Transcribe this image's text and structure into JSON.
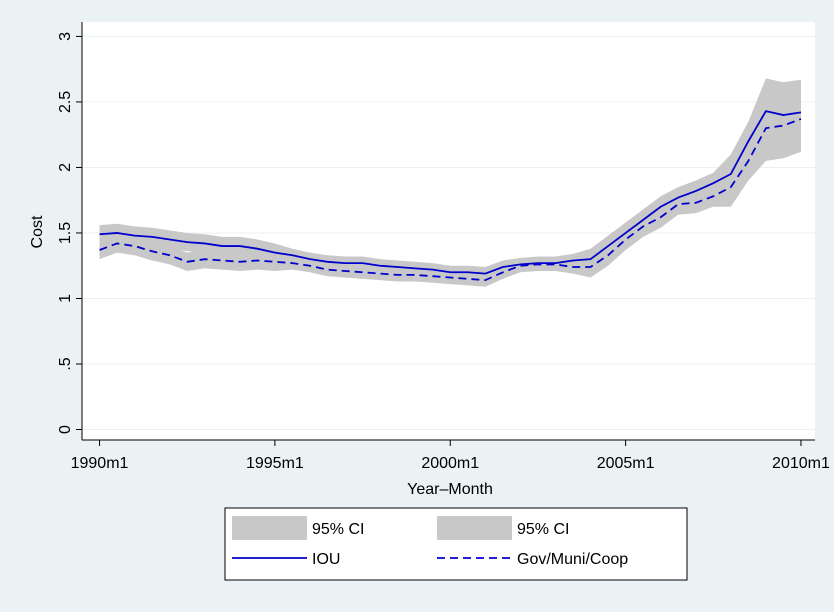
{
  "chart_data": {
    "type": "line",
    "x_label": "Year–Month",
    "y_label": "Cost",
    "x": [
      1990,
      1990.5,
      1991,
      1991.5,
      1992,
      1992.5,
      1993,
      1993.5,
      1994,
      1994.5,
      1995,
      1995.5,
      1996,
      1996.5,
      1997,
      1997.5,
      1998,
      1998.5,
      1999,
      1999.5,
      2000,
      2000.5,
      2001,
      2001.5,
      2002,
      2002.5,
      2003,
      2003.5,
      2004,
      2004.5,
      2005,
      2005.5,
      2006,
      2006.5,
      2007,
      2007.5,
      2008,
      2008.5,
      2009,
      2009.5,
      2010
    ],
    "series": [
      {
        "name": "95% CI",
        "type": "band",
        "color": "#c8c8c8",
        "lower": [
          1.42,
          1.43,
          1.41,
          1.4,
          1.38,
          1.36,
          1.35,
          1.33,
          1.33,
          1.31,
          1.28,
          1.28,
          1.25,
          1.23,
          1.22,
          1.22,
          1.2,
          1.19,
          1.18,
          1.17,
          1.15,
          1.15,
          1.14,
          1.19,
          1.21,
          1.22,
          1.22,
          1.24,
          1.22,
          1.32,
          1.42,
          1.52,
          1.62,
          1.69,
          1.74,
          1.8,
          1.8,
          2.05,
          2.18,
          2.15,
          2.17
        ],
        "upper": [
          1.56,
          1.57,
          1.55,
          1.54,
          1.52,
          1.5,
          1.49,
          1.47,
          1.47,
          1.45,
          1.42,
          1.38,
          1.35,
          1.33,
          1.32,
          1.32,
          1.3,
          1.29,
          1.28,
          1.27,
          1.25,
          1.25,
          1.24,
          1.29,
          1.31,
          1.32,
          1.32,
          1.34,
          1.38,
          1.48,
          1.58,
          1.68,
          1.78,
          1.85,
          1.9,
          1.96,
          2.1,
          2.35,
          2.68,
          2.65,
          2.67
        ]
      },
      {
        "name": "95% CI",
        "type": "band",
        "color": "#c8c8c8",
        "lower": [
          1.3,
          1.35,
          1.33,
          1.29,
          1.26,
          1.21,
          1.23,
          1.22,
          1.21,
          1.22,
          1.21,
          1.22,
          1.2,
          1.17,
          1.16,
          1.15,
          1.14,
          1.13,
          1.13,
          1.12,
          1.11,
          1.1,
          1.09,
          1.15,
          1.2,
          1.21,
          1.21,
          1.19,
          1.16,
          1.25,
          1.37,
          1.47,
          1.54,
          1.64,
          1.65,
          1.7,
          1.7,
          1.9,
          2.05,
          2.07,
          2.12
        ],
        "upper": [
          1.44,
          1.49,
          1.47,
          1.43,
          1.4,
          1.35,
          1.37,
          1.36,
          1.35,
          1.36,
          1.35,
          1.32,
          1.3,
          1.27,
          1.26,
          1.25,
          1.24,
          1.23,
          1.23,
          1.22,
          1.21,
          1.2,
          1.19,
          1.25,
          1.3,
          1.31,
          1.31,
          1.29,
          1.32,
          1.41,
          1.53,
          1.63,
          1.7,
          1.8,
          1.81,
          1.86,
          2.0,
          2.2,
          2.55,
          2.57,
          2.62
        ]
      },
      {
        "name": "IOU",
        "type": "line",
        "color": "#0000cc",
        "dash": "solid",
        "values": [
          1.49,
          1.5,
          1.48,
          1.47,
          1.45,
          1.43,
          1.42,
          1.4,
          1.4,
          1.38,
          1.35,
          1.33,
          1.3,
          1.28,
          1.27,
          1.27,
          1.25,
          1.24,
          1.23,
          1.22,
          1.2,
          1.2,
          1.19,
          1.24,
          1.26,
          1.27,
          1.27,
          1.29,
          1.3,
          1.4,
          1.5,
          1.6,
          1.7,
          1.77,
          1.82,
          1.88,
          1.95,
          2.2,
          2.43,
          2.4,
          2.42
        ]
      },
      {
        "name": "Gov/Muni/Coop",
        "type": "line",
        "color": "#0000cc",
        "dash": "dashed",
        "values": [
          1.37,
          1.42,
          1.4,
          1.36,
          1.33,
          1.28,
          1.3,
          1.29,
          1.28,
          1.29,
          1.28,
          1.27,
          1.25,
          1.22,
          1.21,
          1.2,
          1.19,
          1.18,
          1.18,
          1.17,
          1.16,
          1.15,
          1.14,
          1.2,
          1.25,
          1.26,
          1.26,
          1.24,
          1.24,
          1.33,
          1.45,
          1.55,
          1.62,
          1.72,
          1.73,
          1.78,
          1.85,
          2.05,
          2.3,
          2.32,
          2.37
        ]
      }
    ],
    "xlim": [
      1989.5,
      2010.4
    ],
    "xticks": [
      {
        "value": 1990,
        "label": "1990m1"
      },
      {
        "value": 1995,
        "label": "1995m1"
      },
      {
        "value": 2000,
        "label": "2000m1"
      },
      {
        "value": 2005,
        "label": "2005m1"
      },
      {
        "value": 2010,
        "label": "2010m1"
      }
    ],
    "ylim": [
      -0.08,
      3.11
    ],
    "yticks": [
      0,
      {
        "value": 0.5,
        "label": ".5"
      },
      1,
      1.5,
      2,
      2.5,
      3
    ],
    "grid": true
  }
}
